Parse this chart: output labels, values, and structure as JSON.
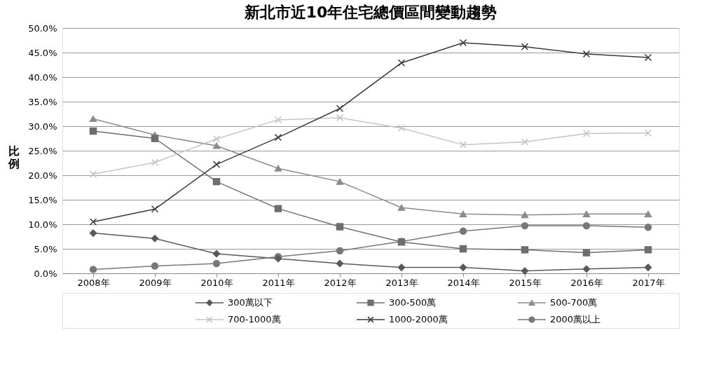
{
  "chart_data": {
    "type": "line",
    "title": "新北市近10年住宅總價區間變動趨勢",
    "ylabel": "比例",
    "categories": [
      "2008年",
      "2009年",
      "2010年",
      "2011年",
      "2012年",
      "2013年",
      "2014年",
      "2015年",
      "2016年",
      "2017年"
    ],
    "series": [
      {
        "name": "300萬以下",
        "color": "#595959",
        "marker": "diamond",
        "values": [
          8.2,
          7.1,
          4.0,
          3.0,
          2.0,
          1.2,
          1.2,
          0.5,
          0.9,
          1.2
        ]
      },
      {
        "name": "300-500萬",
        "color": "#6e6e6e",
        "marker": "square",
        "values": [
          29.0,
          27.5,
          18.7,
          13.2,
          9.5,
          6.4,
          5.0,
          4.8,
          4.2,
          4.8
        ]
      },
      {
        "name": "500-700萬",
        "color": "#8c8c8c",
        "marker": "triangle",
        "values": [
          31.5,
          28.2,
          26.0,
          21.4,
          18.7,
          13.4,
          12.1,
          11.9,
          12.1,
          12.1
        ]
      },
      {
        "name": "700-1000萬",
        "color": "#c4c4c4",
        "marker": "cross",
        "values": [
          20.2,
          22.6,
          27.4,
          31.3,
          31.7,
          29.6,
          26.2,
          26.8,
          28.5,
          28.6
        ]
      },
      {
        "name": "1000-2000萬",
        "color": "#3a3a3a",
        "marker": "cross",
        "values": [
          10.5,
          13.1,
          22.2,
          27.7,
          33.6,
          42.9,
          47.0,
          46.2,
          44.7,
          44.0
        ]
      },
      {
        "name": "2000萬以上",
        "color": "#777777",
        "marker": "circle",
        "values": [
          0.8,
          1.5,
          2.0,
          3.4,
          4.6,
          6.5,
          8.6,
          9.7,
          9.7,
          9.4
        ]
      }
    ],
    "ylim": [
      0,
      50
    ],
    "yticks": [
      {
        "value": 0,
        "label": "0.0%"
      },
      {
        "value": 5,
        "label": "5.0%"
      },
      {
        "value": 10,
        "label": "10.0%"
      },
      {
        "value": 15,
        "label": "15.0%"
      },
      {
        "value": 20,
        "label": "20.0%"
      },
      {
        "value": 25,
        "label": "25.0%"
      },
      {
        "value": 30,
        "label": "30.0%"
      },
      {
        "value": 35,
        "label": "35.0%"
      },
      {
        "value": 40,
        "label": "40.0%"
      },
      {
        "value": 45,
        "label": "45.0%"
      },
      {
        "value": 50,
        "label": "50.0%"
      }
    ],
    "grid": "y",
    "legend": "bottom",
    "line_style": "solid"
  }
}
